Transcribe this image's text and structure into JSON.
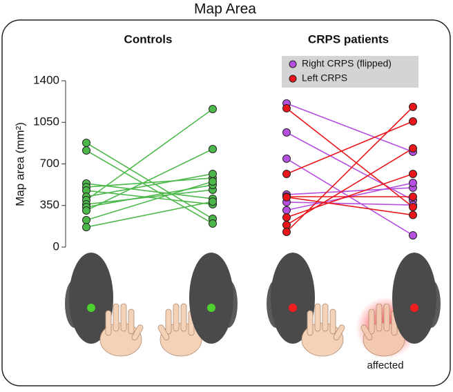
{
  "chart_data": {
    "type": "slope",
    "title": "Map Area",
    "ylabel": "Map area (mm²)",
    "ylim": [
      0,
      1400
    ],
    "yticks": [
      0,
      350,
      700,
      1050,
      1400
    ],
    "panels": [
      {
        "title": "Controls",
        "groups": [
          {
            "color": "#4db84a",
            "left": [
              877,
              813,
              535,
              505,
              476,
              424,
              395,
              360,
              337,
              308,
              227,
              168
            ],
            "right": [
              238,
              198,
              407,
              581,
              360,
              616,
              1162,
              482,
              523,
              825,
              552,
              383
            ]
          }
        ]
      },
      {
        "title": "CRPS patients",
        "groups": [
          {
            "name": "Right CRPS (flipped)",
            "color": "#b44fe0",
            "left": [
              1209,
              965,
              744,
              442,
              378,
              310
            ],
            "right": [
              802,
              395,
              99,
              500,
              354,
              540
            ]
          },
          {
            "name": "Left CRPS",
            "color": "#e8161a",
            "left": [
              1168,
              616,
              424,
              420,
              250,
              186,
              128
            ],
            "right": [
              337,
              1058,
              424,
              270,
              616,
              831,
              1180
            ]
          }
        ]
      }
    ],
    "annotation": "affected"
  }
}
